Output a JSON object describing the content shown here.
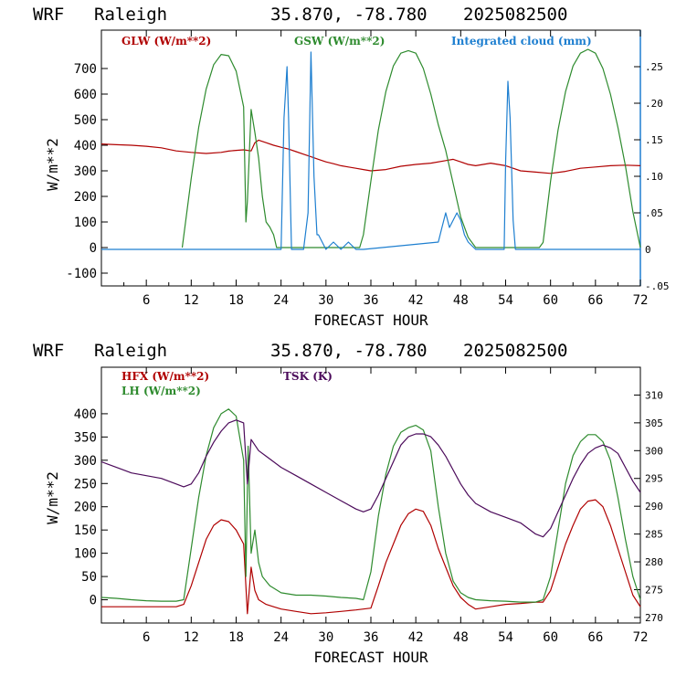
{
  "colors": {
    "red": "#b00000",
    "green": "#2e8b2e",
    "blue": "#1e7fd0",
    "purple": "#4b0a5a"
  },
  "chart_data": [
    {
      "type": "line",
      "header": {
        "model": "WRF",
        "site": "Raleigh",
        "coords": "35.870, -78.780",
        "date": "2025082500"
      },
      "xlabel": "FORECAST HOUR",
      "ylabel": "W/m**2",
      "xlim": [
        0,
        72
      ],
      "ylim": [
        -150,
        850
      ],
      "y2lim": [
        -0.05,
        0.3
      ],
      "x_ticks": [
        "6",
        "12",
        "18",
        "24",
        "30",
        "36",
        "42",
        "48",
        "54",
        "60",
        "66",
        "72"
      ],
      "y_ticks": [
        "-100",
        "0",
        "100",
        "200",
        "300",
        "400",
        "500",
        "600",
        "700"
      ],
      "y2_ticks": [
        "-.05",
        "0",
        ".05",
        ".10",
        ".15",
        ".20",
        ".25"
      ],
      "series": [
        {
          "name": "GLW (W/m**2)",
          "color": "#b00000",
          "axis": "left",
          "x": [
            0,
            2,
            4,
            6,
            8,
            10,
            12,
            14,
            16,
            17,
            18,
            19,
            20,
            20.5,
            21,
            22,
            23,
            24,
            25,
            26,
            27,
            28,
            29,
            30,
            31,
            32,
            33,
            34,
            35,
            36,
            38,
            40,
            42,
            44,
            46,
            47,
            48,
            49,
            50,
            52,
            54,
            55,
            56,
            58,
            60,
            62,
            64,
            66,
            68,
            70,
            72
          ],
          "y": [
            405,
            402,
            400,
            396,
            390,
            378,
            372,
            368,
            372,
            377,
            380,
            382,
            378,
            410,
            420,
            410,
            400,
            392,
            385,
            375,
            365,
            355,
            345,
            335,
            328,
            320,
            315,
            310,
            305,
            300,
            305,
            318,
            325,
            330,
            340,
            345,
            335,
            325,
            320,
            330,
            320,
            310,
            300,
            295,
            290,
            298,
            310,
            315,
            320,
            322,
            320
          ]
        },
        {
          "name": "GSW (W/m**2)",
          "color": "#2e8b2e",
          "axis": "left",
          "x": [
            10.8,
            12,
            13,
            14,
            15,
            16,
            17,
            18,
            19,
            19.3,
            19.5,
            20,
            20.5,
            21,
            21.5,
            22,
            22.5,
            23,
            23.4,
            24,
            25,
            26,
            34.5,
            35,
            36,
            37,
            38,
            39,
            40,
            41,
            42,
            43,
            44,
            45,
            46,
            47,
            48,
            49,
            50,
            58.5,
            59,
            60,
            61,
            62,
            63,
            64,
            65,
            66,
            67,
            68,
            69,
            70,
            71,
            72
          ],
          "y": [
            0,
            270,
            470,
            620,
            715,
            755,
            750,
            690,
            550,
            100,
            180,
            540,
            450,
            350,
            200,
            100,
            80,
            50,
            0,
            0,
            0,
            0,
            0,
            50,
            260,
            460,
            610,
            710,
            760,
            770,
            760,
            700,
            600,
            480,
            380,
            250,
            120,
            40,
            0,
            0,
            20,
            260,
            460,
            610,
            710,
            760,
            775,
            760,
            700,
            600,
            470,
            320,
            140,
            0
          ]
        },
        {
          "name": "Integrated cloud (mm)",
          "color": "#1e7fd0",
          "axis": "right",
          "x": [
            0,
            24,
            24.4,
            24.8,
            25,
            25.4,
            26,
            27,
            27.6,
            28,
            28.4,
            28.8,
            29,
            30,
            31,
            32,
            33,
            34,
            35,
            45,
            45.5,
            46,
            46.5,
            47,
            47.5,
            48,
            48.5,
            49,
            50,
            53.8,
            54,
            54.3,
            54.6,
            55,
            55.3,
            56,
            72
          ],
          "y": [
            0,
            0,
            0.18,
            0.25,
            0.18,
            0,
            0,
            0,
            0.05,
            0.27,
            0.1,
            0.02,
            0.02,
            0,
            0.01,
            0,
            0.01,
            0,
            0,
            0.01,
            0.03,
            0.05,
            0.03,
            0.04,
            0.05,
            0.04,
            0.02,
            0.01,
            0,
            0,
            0.12,
            0.23,
            0.18,
            0.04,
            0,
            0,
            0
          ]
        }
      ]
    },
    {
      "type": "line",
      "header": {
        "model": "WRF",
        "site": "Raleigh",
        "coords": "35.870, -78.780",
        "date": "2025082500"
      },
      "xlabel": "FORECAST HOUR",
      "ylabel": "W/m**2",
      "xlim": [
        0,
        72
      ],
      "ylim": [
        -50,
        500
      ],
      "y2lim": [
        269,
        315
      ],
      "x_ticks": [
        "6",
        "12",
        "18",
        "24",
        "30",
        "36",
        "42",
        "48",
        "54",
        "60",
        "66",
        "72"
      ],
      "y_ticks": [
        "0",
        "50",
        "100",
        "150",
        "200",
        "250",
        "300",
        "350",
        "400"
      ],
      "y2_ticks": [
        "270",
        "275",
        "280",
        "285",
        "290",
        "295",
        "300",
        "305",
        "310"
      ],
      "series": [
        {
          "name": "HFX (W/m**2)",
          "color": "#b00000",
          "axis": "left",
          "x": [
            0,
            2,
            4,
            6,
            8,
            10,
            11,
            12,
            13,
            14,
            15,
            16,
            17,
            18,
            19,
            19.5,
            20,
            20.5,
            21,
            22,
            23,
            24,
            26,
            28,
            30,
            32,
            34,
            36,
            37,
            38,
            39,
            40,
            41,
            42,
            43,
            44,
            45,
            46,
            47,
            48,
            49,
            50,
            52,
            54,
            56,
            58,
            59,
            60,
            61,
            62,
            63,
            64,
            65,
            66,
            67,
            68,
            69,
            70,
            71,
            72
          ],
          "y": [
            -15,
            -15,
            -15,
            -15,
            -15,
            -15,
            -10,
            30,
            80,
            130,
            160,
            172,
            168,
            150,
            120,
            -30,
            70,
            20,
            0,
            -10,
            -15,
            -20,
            -25,
            -30,
            -28,
            -25,
            -22,
            -18,
            30,
            80,
            120,
            160,
            185,
            195,
            190,
            160,
            110,
            70,
            30,
            5,
            -10,
            -20,
            -15,
            -10,
            -8,
            -5,
            -5,
            20,
            70,
            120,
            160,
            195,
            212,
            215,
            200,
            160,
            110,
            60,
            10,
            -15
          ]
        },
        {
          "name": "LH (W/m**2)",
          "color": "#2e8b2e",
          "axis": "left",
          "x": [
            0,
            2,
            4,
            6,
            8,
            10,
            11,
            12,
            13,
            14,
            15,
            16,
            17,
            18,
            19,
            19.3,
            19.6,
            20,
            20.5,
            21,
            21.5,
            22,
            22.5,
            23,
            24,
            26,
            28,
            30,
            32,
            34,
            35,
            36,
            37,
            38,
            39,
            40,
            41,
            42,
            43,
            44,
            45,
            46,
            47,
            48,
            49,
            50,
            52,
            54,
            56,
            58,
            59,
            60,
            61,
            62,
            63,
            64,
            65,
            66,
            67,
            68,
            69,
            70,
            71,
            72
          ],
          "y": [
            5,
            3,
            0,
            -2,
            -3,
            -3,
            0,
            110,
            220,
            310,
            370,
            400,
            410,
            395,
            300,
            50,
            330,
            100,
            150,
            80,
            50,
            40,
            30,
            25,
            15,
            10,
            10,
            8,
            5,
            3,
            0,
            60,
            180,
            270,
            330,
            360,
            370,
            375,
            365,
            320,
            200,
            100,
            40,
            15,
            5,
            0,
            -2,
            -3,
            -5,
            -5,
            0,
            50,
            150,
            250,
            310,
            340,
            355,
            355,
            340,
            300,
            220,
            130,
            50,
            0
          ]
        },
        {
          "name": "TSK (K)",
          "color": "#4b0a5a",
          "axis": "right",
          "x": [
            0,
            2,
            4,
            6,
            8,
            10,
            11,
            12,
            13,
            14,
            15,
            16,
            17,
            18,
            19,
            19.5,
            20,
            21,
            22,
            24,
            26,
            28,
            30,
            32,
            34,
            35,
            36,
            37,
            38,
            39,
            40,
            41,
            42,
            43,
            44,
            45,
            46,
            47,
            48,
            49,
            50,
            52,
            54,
            56,
            58,
            59,
            60,
            61,
            62,
            63,
            64,
            65,
            66,
            67,
            68,
            69,
            70,
            71,
            72
          ],
          "y": [
            298,
            297,
            296,
            295.5,
            295,
            294,
            293.5,
            294,
            296,
            299,
            301.5,
            303.5,
            305,
            305.5,
            305,
            294,
            302,
            300,
            299,
            297,
            295.5,
            294,
            292.5,
            291,
            289.5,
            289,
            289.5,
            292,
            295,
            298,
            301,
            302.5,
            303,
            303,
            302.5,
            301,
            299,
            296.5,
            294,
            292,
            290.5,
            289,
            288,
            287,
            285,
            284.5,
            286,
            289,
            292,
            295,
            297.5,
            299.5,
            300.5,
            301,
            300.5,
            299.5,
            297,
            294.5,
            292.5
          ]
        }
      ]
    }
  ]
}
